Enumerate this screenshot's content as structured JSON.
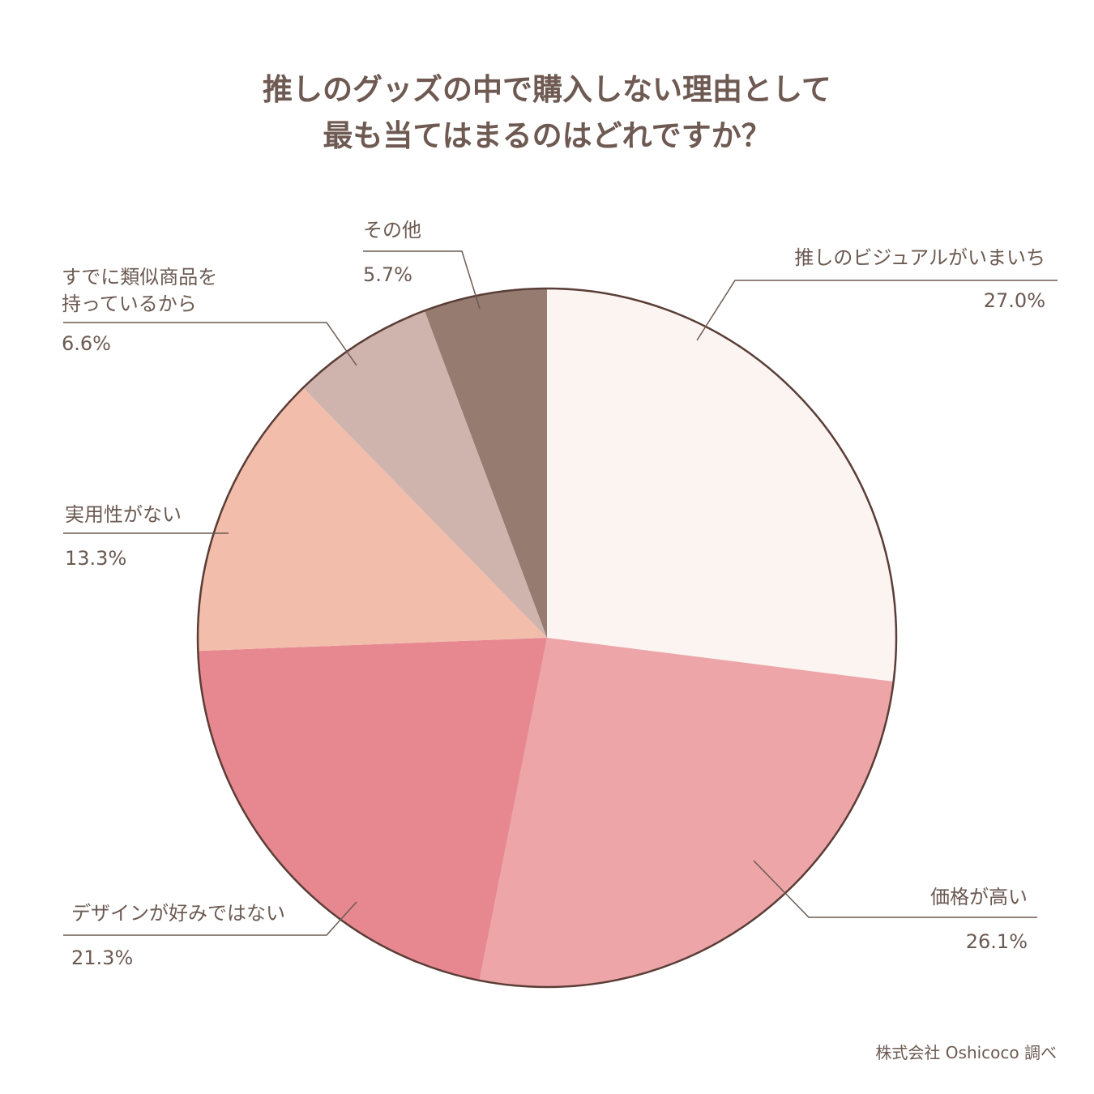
{
  "title_lines": [
    "推しのグッズの中で購入しない理由として",
    "最も当てはまるのはどれですか？"
  ],
  "source": "株式会社 Oshicoco 調べ",
  "colors": {
    "outline": "#5a3d36",
    "leader": "#6b5a52"
  },
  "chart_data": {
    "type": "pie",
    "title": "推しのグッズの中で購入しない理由として最も当てはまるのはどれですか？",
    "unit": "%",
    "slices": [
      {
        "label_lines": [
          "推しのビジュアルがいまいち"
        ],
        "label": "推しのビジュアルがいまいち",
        "value": 27.0,
        "display": "27.0%",
        "color": "#fcf4f1"
      },
      {
        "label_lines": [
          "価格が高い"
        ],
        "label": "価格が高い",
        "value": 26.1,
        "display": "26.1%",
        "color": "#eda5a8"
      },
      {
        "label_lines": [
          "デザインが好みではない"
        ],
        "label": "デザインが好みではない",
        "value": 21.3,
        "display": "21.3%",
        "color": "#e78891"
      },
      {
        "label_lines": [
          "実用性がない"
        ],
        "label": "実用性がない",
        "value": 13.3,
        "display": "13.3%",
        "color": "#f2bdab"
      },
      {
        "label_lines": [
          "すでに類似商品を",
          "持っているから"
        ],
        "label": "すでに類似商品を持っているから",
        "value": 6.6,
        "display": "6.6%",
        "color": "#cfb4ae"
      },
      {
        "label_lines": [
          "その他"
        ],
        "label": "その他",
        "value": 5.7,
        "display": "5.7%",
        "color": "#957b70"
      }
    ]
  }
}
